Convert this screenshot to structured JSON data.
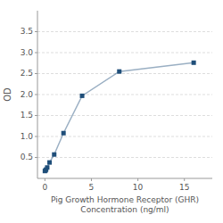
{
  "chart_data": {
    "type": "line",
    "xlabel": "Pig Growth Hormone Receptor (GHR)\nConcentration (ng/ml)",
    "ylabel": "OD",
    "x": [
      0,
      0.0625,
      0.125,
      0.25,
      0.5,
      1,
      2,
      4,
      8,
      16
    ],
    "values": [
      0.176,
      0.19,
      0.21,
      0.26,
      0.38,
      0.57,
      1.08,
      1.97,
      2.55,
      2.76
    ],
    "color": "#1f4e79",
    "marker": "square",
    "xlim": [
      -0.8,
      18
    ],
    "ylim": [
      0,
      4.0
    ],
    "xticks": [
      0,
      5,
      10,
      15
    ],
    "yticks": [
      0.5,
      {
        "value": 1.0,
        "label": "1.0"
      },
      1.5,
      {
        "value": 2.0,
        "label": "2.0"
      },
      2.5,
      {
        "value": 3.0,
        "label": "3.0"
      },
      3.5
    ],
    "grid": true
  }
}
